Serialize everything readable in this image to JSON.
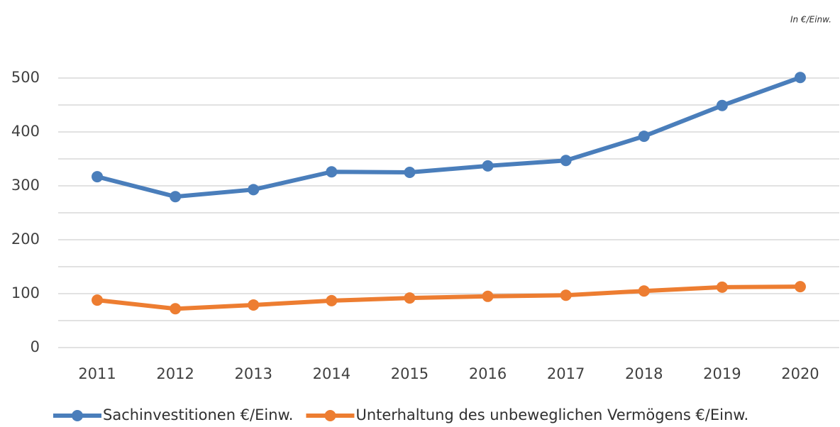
{
  "chart_data": {
    "type": "line",
    "annotation": "In €/Einw.",
    "categories": [
      "2011",
      "2012",
      "2013",
      "2014",
      "2015",
      "2016",
      "2017",
      "2018",
      "2019",
      "2020"
    ],
    "series": [
      {
        "name": "Sachinvestitionen €/Einw.",
        "color": "#4a7ebb",
        "values": [
          317,
          280,
          293,
          326,
          325,
          337,
          347,
          392,
          449,
          501
        ]
      },
      {
        "name": "Unterhaltung des unbeweglichen Vermögens €/Einw.",
        "color": "#ed7d31",
        "values": [
          88,
          72,
          79,
          87,
          92,
          95,
          97,
          105,
          112,
          113
        ]
      }
    ],
    "ylim": [
      0,
      500
    ],
    "yticks": [
      0,
      100,
      200,
      300,
      400,
      500
    ],
    "minor_yticks": [
      50,
      150,
      250,
      350,
      450
    ],
    "grid": true,
    "legend": "bottom"
  }
}
